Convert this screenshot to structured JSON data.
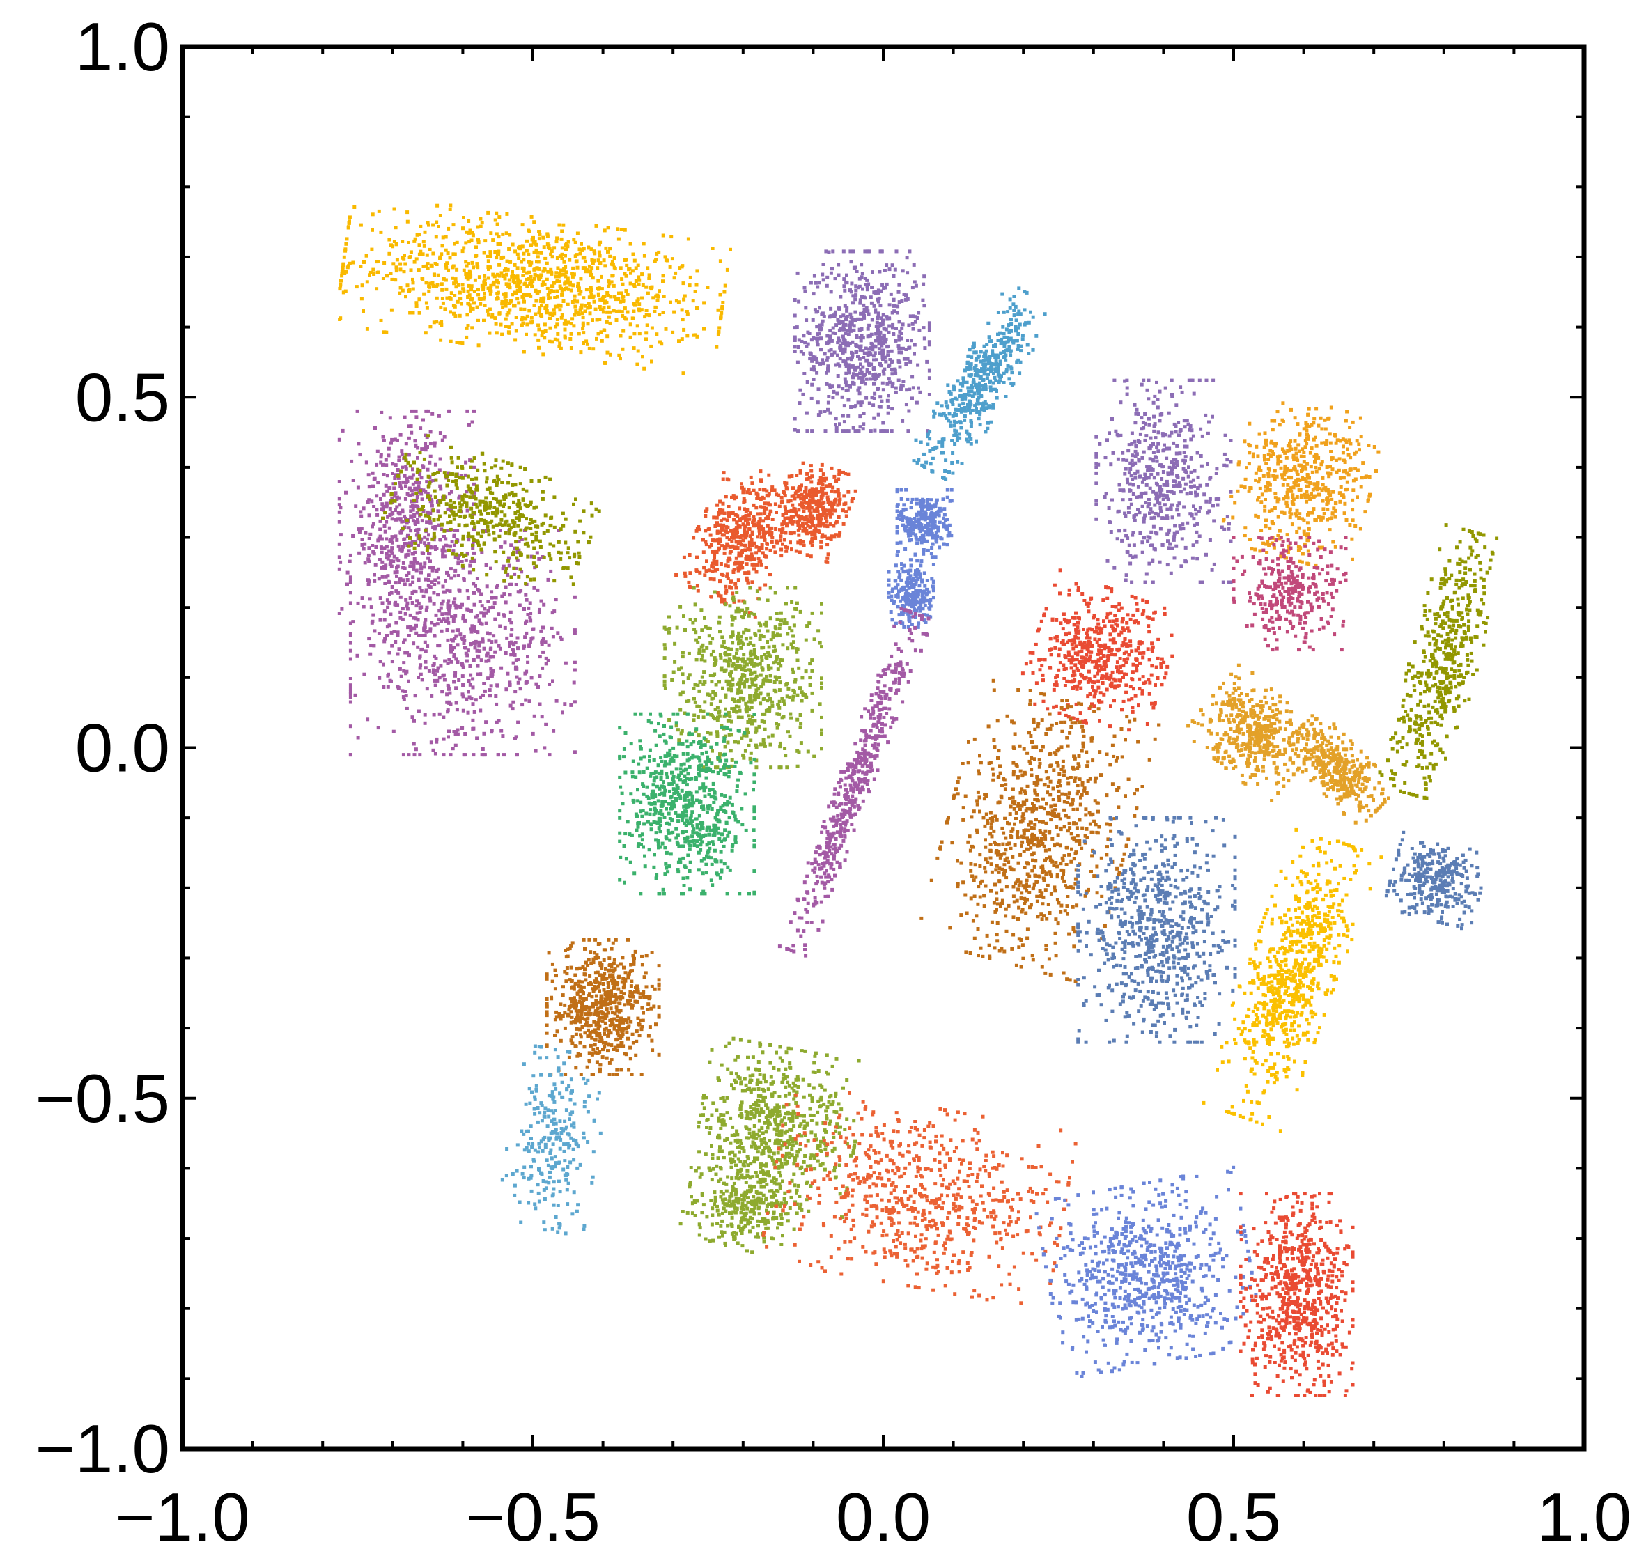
{
  "chart_data": {
    "type": "scatter",
    "title": "",
    "xlabel": "",
    "ylabel": "",
    "xlim": [
      -1.0,
      1.0
    ],
    "ylim": [
      -1.0,
      1.0
    ],
    "grid": false,
    "legend": "none",
    "x_ticks": [
      {
        "value": -1.0,
        "label": "−1.0"
      },
      {
        "value": -0.5,
        "label": "−0.5"
      },
      {
        "value": 0.0,
        "label": "0.0"
      },
      {
        "value": 0.5,
        "label": "0.5"
      },
      {
        "value": 1.0,
        "label": "1.0"
      }
    ],
    "y_ticks": [
      {
        "value": -1.0,
        "label": "−1.0"
      },
      {
        "value": -0.5,
        "label": "−0.5"
      },
      {
        "value": 0.0,
        "label": "0.0"
      },
      {
        "value": 0.5,
        "label": "0.5"
      },
      {
        "value": 1.0,
        "label": "1.0"
      }
    ],
    "clusters": [
      {
        "color": "#F9B900",
        "center": [
          -0.5,
          0.66
        ],
        "spread": [
          0.17,
          0.06
        ],
        "tilt": -8,
        "points": 1100
      },
      {
        "color": "#8C6DB5",
        "center": [
          -0.03,
          0.58
        ],
        "spread": [
          0.06,
          0.08
        ],
        "tilt": 0,
        "points": 700
      },
      {
        "color": "#4E9FCC",
        "center": [
          0.14,
          0.52
        ],
        "spread": [
          0.025,
          0.09
        ],
        "tilt": -30,
        "points": 450
      },
      {
        "color": "#A35AA5",
        "center": [
          -0.68,
          0.32
        ],
        "spread": [
          0.06,
          0.1
        ],
        "tilt": 0,
        "points": 550
      },
      {
        "color": "#A35AA5",
        "center": [
          -0.6,
          0.15
        ],
        "spread": [
          0.1,
          0.1
        ],
        "tilt": 0,
        "points": 700
      },
      {
        "color": "#929700",
        "center": [
          -0.56,
          0.33
        ],
        "spread": [
          0.09,
          0.05
        ],
        "tilt": -20,
        "points": 450
      },
      {
        "color": "#E95A2E",
        "center": [
          -0.2,
          0.3
        ],
        "spread": [
          0.04,
          0.06
        ],
        "tilt": -25,
        "points": 450
      },
      {
        "color": "#E95A2E",
        "center": [
          -0.1,
          0.34
        ],
        "spread": [
          0.03,
          0.04
        ],
        "tilt": -20,
        "points": 350
      },
      {
        "color": "#6A84D8",
        "center": [
          0.06,
          0.32
        ],
        "spread": [
          0.025,
          0.03
        ],
        "tilt": 0,
        "points": 250
      },
      {
        "color": "#6A84D8",
        "center": [
          0.04,
          0.22
        ],
        "spread": [
          0.02,
          0.03
        ],
        "tilt": 0,
        "points": 220
      },
      {
        "color": "#8EAA2F",
        "center": [
          -0.2,
          0.1
        ],
        "spread": [
          0.07,
          0.08
        ],
        "tilt": 0,
        "points": 650
      },
      {
        "color": "#3BB16C",
        "center": [
          -0.28,
          -0.08
        ],
        "spread": [
          0.06,
          0.08
        ],
        "tilt": 0,
        "points": 650
      },
      {
        "color": "#A35AA5",
        "center": [
          -0.04,
          -0.05
        ],
        "spread": [
          0.015,
          0.16
        ],
        "tilt": -20,
        "points": 500
      },
      {
        "color": "#8C6DB5",
        "center": [
          0.4,
          0.38
        ],
        "spread": [
          0.06,
          0.09
        ],
        "tilt": 0,
        "points": 500
      },
      {
        "color": "#F0A11C",
        "center": [
          0.6,
          0.38
        ],
        "spread": [
          0.06,
          0.07
        ],
        "tilt": -15,
        "points": 500
      },
      {
        "color": "#C1497A",
        "center": [
          0.58,
          0.22
        ],
        "spread": [
          0.05,
          0.05
        ],
        "tilt": 0,
        "points": 300
      },
      {
        "color": "#929700",
        "center": [
          0.8,
          0.12
        ],
        "spread": [
          0.03,
          0.12
        ],
        "tilt": -15,
        "points": 500
      },
      {
        "color": "#E94B33",
        "center": [
          0.31,
          0.13
        ],
        "spread": [
          0.06,
          0.06
        ],
        "tilt": -20,
        "points": 500
      },
      {
        "color": "#E3A128",
        "center": [
          0.53,
          0.02
        ],
        "spread": [
          0.05,
          0.04
        ],
        "tilt": -40,
        "points": 400
      },
      {
        "color": "#E3A128",
        "center": [
          0.65,
          -0.03
        ],
        "spread": [
          0.05,
          0.025
        ],
        "tilt": -45,
        "points": 350
      },
      {
        "color": "#C06F17",
        "center": [
          0.22,
          -0.12
        ],
        "spread": [
          0.08,
          0.12
        ],
        "tilt": -15,
        "points": 800
      },
      {
        "color": "#5B7DB4",
        "center": [
          0.39,
          -0.26
        ],
        "spread": [
          0.07,
          0.1
        ],
        "tilt": 0,
        "points": 700
      },
      {
        "color": "#5B7DB4",
        "center": [
          0.79,
          -0.19
        ],
        "spread": [
          0.04,
          0.035
        ],
        "tilt": -15,
        "points": 300
      },
      {
        "color": "#FBC000",
        "center": [
          0.58,
          -0.33
        ],
        "spread": [
          0.04,
          0.13
        ],
        "tilt": -20,
        "points": 700
      },
      {
        "color": "#C06F17",
        "center": [
          -0.4,
          -0.37
        ],
        "spread": [
          0.05,
          0.06
        ],
        "tilt": 0,
        "points": 600
      },
      {
        "color": "#5DA7CF",
        "center": [
          -0.47,
          -0.56
        ],
        "spread": [
          0.04,
          0.08
        ],
        "tilt": -10,
        "points": 250
      },
      {
        "color": "#8EAA2F",
        "center": [
          -0.15,
          -0.54
        ],
        "spread": [
          0.07,
          0.07
        ],
        "tilt": -10,
        "points": 600
      },
      {
        "color": "#8EAA2F",
        "center": [
          -0.2,
          -0.65
        ],
        "spread": [
          0.05,
          0.04
        ],
        "tilt": -15,
        "points": 300
      },
      {
        "color": "#EB6234",
        "center": [
          0.05,
          -0.64
        ],
        "spread": [
          0.13,
          0.08
        ],
        "tilt": -10,
        "points": 650
      },
      {
        "color": "#6A84D8",
        "center": [
          0.38,
          -0.75
        ],
        "spread": [
          0.09,
          0.08
        ],
        "tilt": 10,
        "points": 700
      },
      {
        "color": "#E94B33",
        "center": [
          0.59,
          -0.78
        ],
        "spread": [
          0.05,
          0.09
        ],
        "tilt": 0,
        "points": 700
      }
    ]
  }
}
